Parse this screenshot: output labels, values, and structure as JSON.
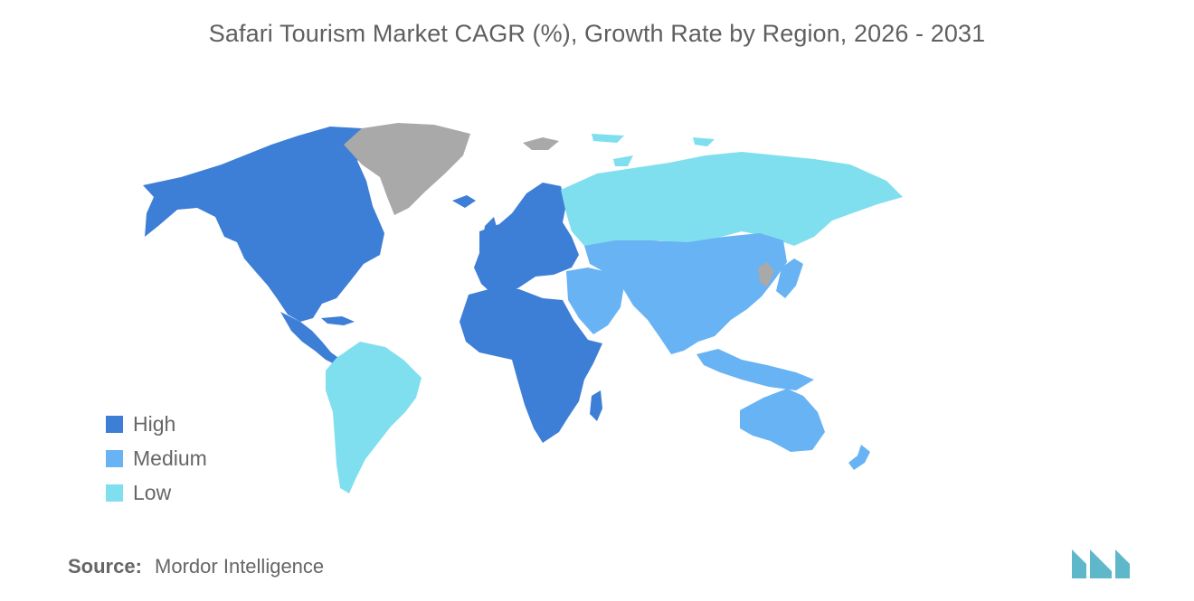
{
  "title": "Safari Tourism Market CAGR (%), Growth Rate by Region, 2026 - 2031",
  "legend": {
    "items": [
      {
        "label": "High",
        "color": "#3d7ed6"
      },
      {
        "label": "Medium",
        "color": "#68b3f3"
      },
      {
        "label": "Low",
        "color": "#7fdfef"
      }
    ]
  },
  "no_data_color": "#a9a9a9",
  "regions": [
    {
      "name": "North America",
      "level": "High"
    },
    {
      "name": "Europe",
      "level": "High"
    },
    {
      "name": "Africa",
      "level": "High"
    },
    {
      "name": "Asia-Pacific",
      "level": "Medium"
    },
    {
      "name": "Middle East",
      "level": "Medium"
    },
    {
      "name": "Australia",
      "level": "Medium"
    },
    {
      "name": "South America",
      "level": "Low"
    },
    {
      "name": "Russia",
      "level": "Low"
    }
  ],
  "source": {
    "label": "Source:",
    "value": "Mordor Intelligence"
  },
  "logo": {
    "icon": "mordor-intelligence-logo",
    "color": "#5fb8c9"
  }
}
